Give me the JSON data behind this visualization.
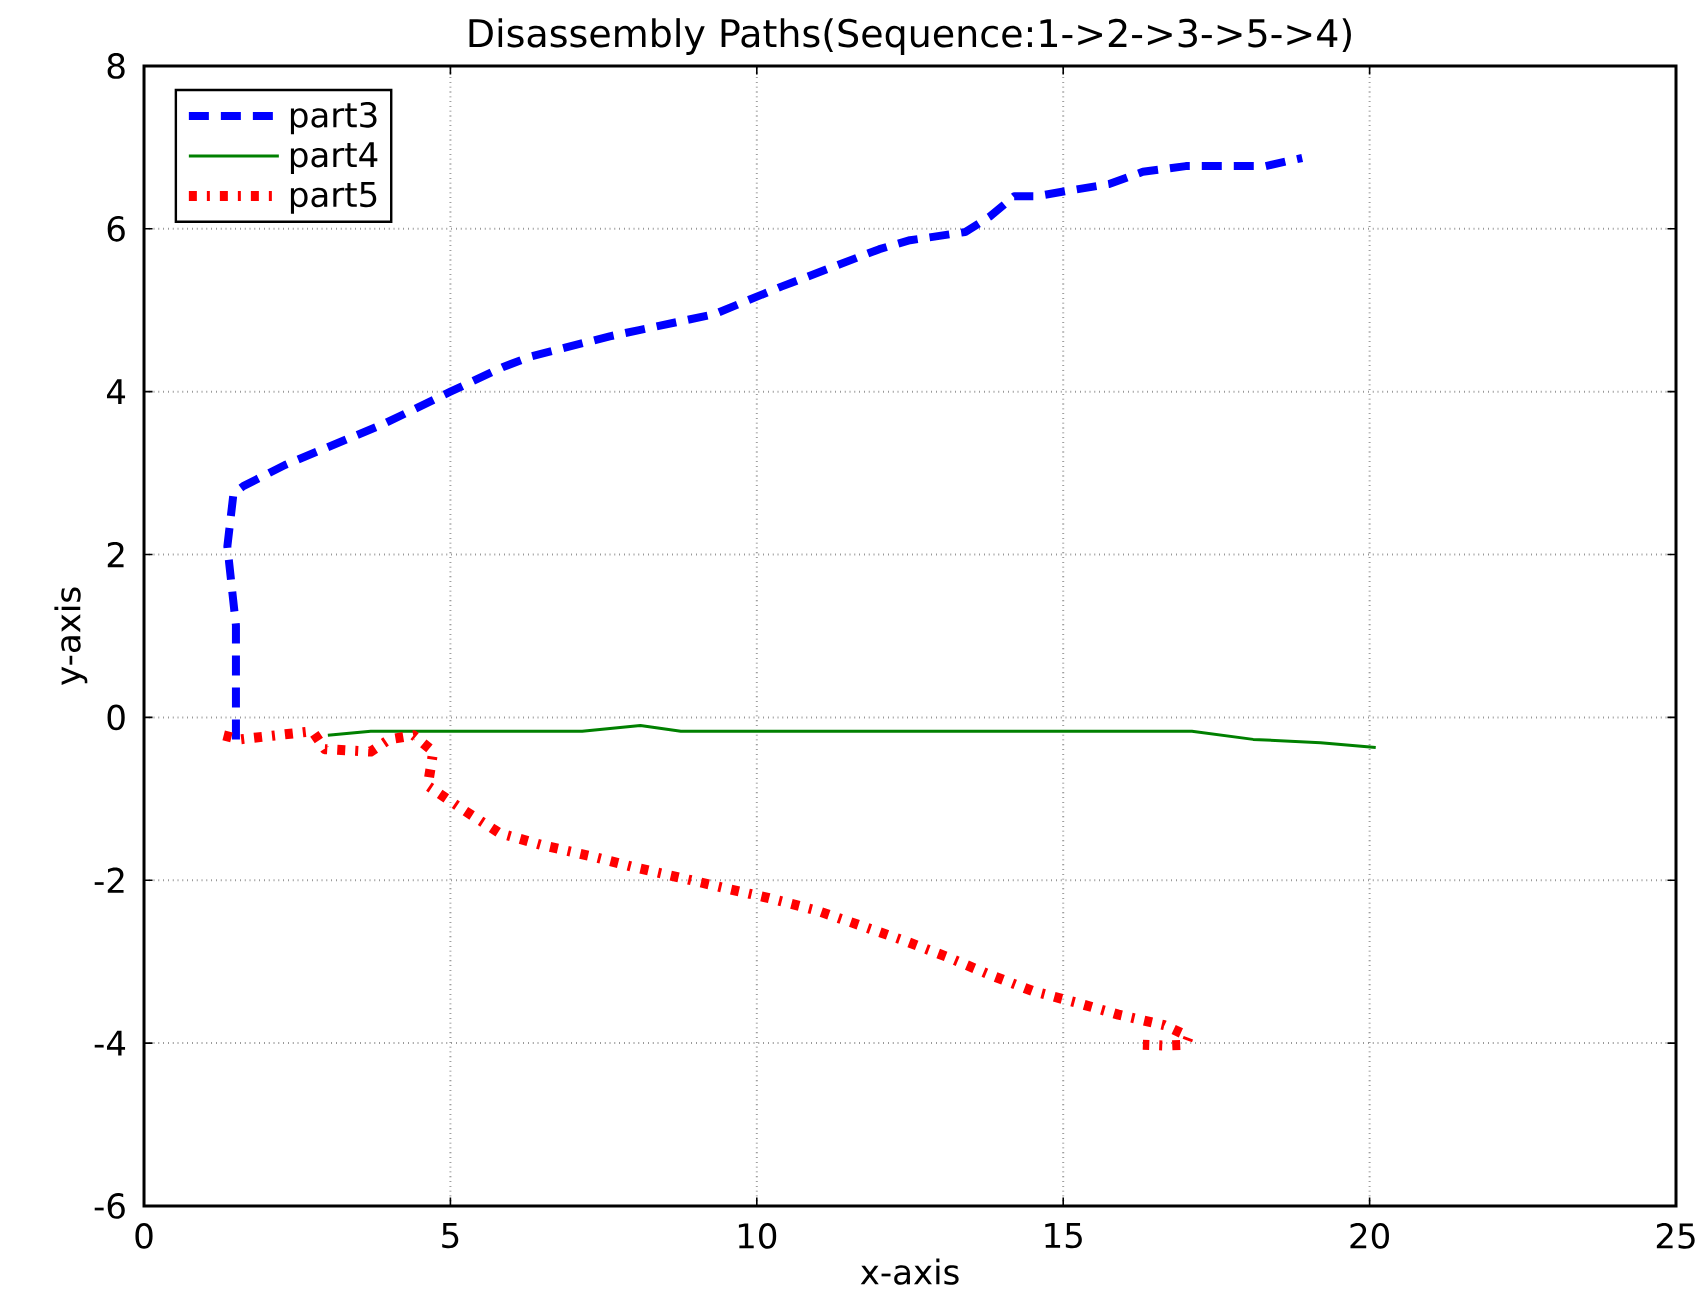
{
  "chart_data": {
    "type": "line",
    "title": "Disassembly Paths(Sequence:1->2->3->5->4)",
    "xlabel": "x-axis",
    "ylabel": "y-axis",
    "xlim": [
      0,
      25
    ],
    "ylim": [
      -6,
      8
    ],
    "xticks": [
      0,
      5,
      10,
      15,
      20,
      25
    ],
    "yticks": [
      -6,
      -4,
      -2,
      0,
      2,
      4,
      6,
      8
    ],
    "grid": true,
    "legend": "top left",
    "series": [
      {
        "name": "part3",
        "color": "#0000ff",
        "line_style": "dashed",
        "x": [
          1.5,
          1.5,
          1.36,
          1.46,
          1.62,
          2.3,
          3.9,
          5.0,
          5.85,
          6.3,
          7.6,
          8.1,
          9.3,
          10.4,
          12.0,
          12.5,
          13.4,
          13.8,
          14.2,
          14.56,
          15.1,
          15.75,
          16.3,
          17.0,
          17.6,
          18.3,
          18.9
        ],
        "values": [
          -0.27,
          1.13,
          2.1,
          2.75,
          2.84,
          3.1,
          3.6,
          4.0,
          4.3,
          4.43,
          4.68,
          4.76,
          4.95,
          5.29,
          5.75,
          5.86,
          5.96,
          6.15,
          6.4,
          6.4,
          6.47,
          6.55,
          6.7,
          6.77,
          6.77,
          6.77,
          6.87
        ]
      },
      {
        "name": "part4",
        "color": "#008000",
        "line_style": "solid",
        "x": [
          3.0,
          3.7,
          7.15,
          8.1,
          8.76,
          17.1,
          18.1,
          19.2,
          20.1
        ],
        "values": [
          -0.22,
          -0.17,
          -0.17,
          -0.1,
          -0.17,
          -0.17,
          -0.27,
          -0.31,
          -0.37
        ]
      },
      {
        "name": "part5",
        "color": "#ff0000",
        "line_style": "dotted",
        "x": [
          1.3,
          1.56,
          2.75,
          2.95,
          3.7,
          4.0,
          4.4,
          4.72,
          4.63,
          5.2,
          5.8,
          6.5,
          7.27,
          8.0,
          8.76,
          9.5,
          10.2,
          10.97,
          11.67,
          12.4,
          13.1,
          13.8,
          14.5,
          15.2,
          15.9,
          16.65,
          17.05,
          17.0,
          16.7,
          16.3
        ],
        "values": [
          -0.22,
          -0.27,
          -0.17,
          -0.39,
          -0.42,
          -0.27,
          -0.22,
          -0.42,
          -0.84,
          -1.13,
          -1.42,
          -1.57,
          -1.7,
          -1.84,
          -1.97,
          -2.1,
          -2.22,
          -2.37,
          -2.55,
          -2.74,
          -2.94,
          -3.16,
          -3.36,
          -3.5,
          -3.65,
          -3.78,
          -3.92,
          -4.02,
          -4.03,
          -4.02
        ]
      }
    ]
  }
}
